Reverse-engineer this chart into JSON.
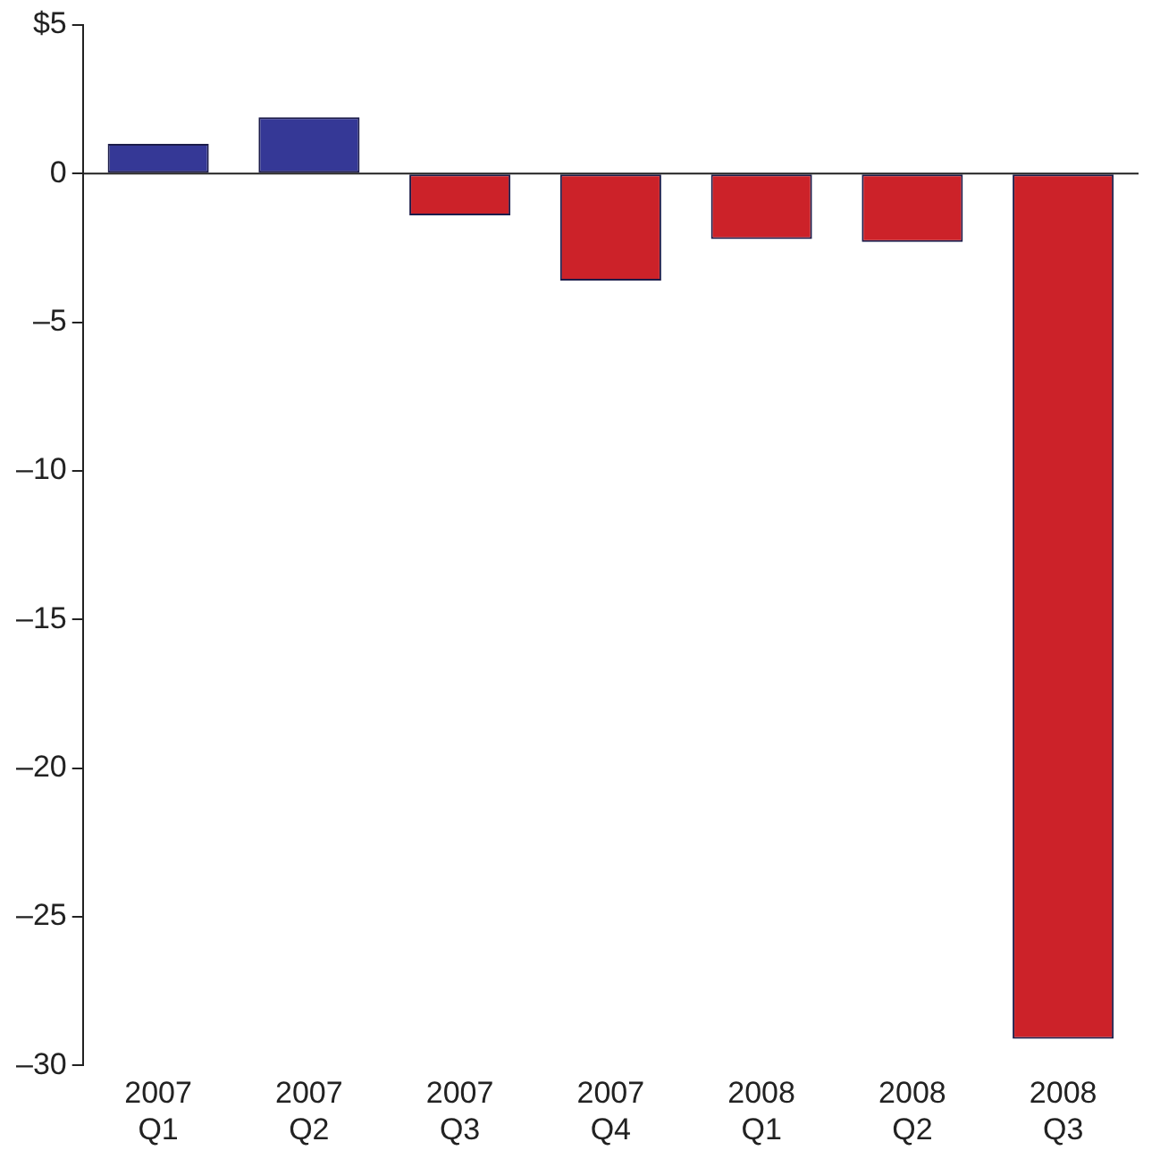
{
  "chart_data": {
    "type": "bar",
    "categories": [
      "2007\nQ1",
      "2007\nQ2",
      "2007\nQ3",
      "2007\nQ4",
      "2008\nQ1",
      "2008\nQ2",
      "2008\nQ3"
    ],
    "values": [
      1.0,
      1.9,
      -1.4,
      -3.6,
      -2.2,
      -2.3,
      -29.1
    ],
    "colors": [
      "#353896",
      "#353896",
      "#cc2229",
      "#cc2229",
      "#cc2229",
      "#cc2229",
      "#cc2229"
    ],
    "ylim": [
      -30,
      5
    ],
    "yticks": [
      {
        "value": 5,
        "label": "$5"
      },
      {
        "value": 0,
        "label": "0"
      },
      {
        "value": -5,
        "label": "–5"
      },
      {
        "value": -10,
        "label": "–10"
      },
      {
        "value": -15,
        "label": "–15"
      },
      {
        "value": -20,
        "label": "–20"
      },
      {
        "value": -25,
        "label": "–25"
      },
      {
        "value": -30,
        "label": "–30"
      }
    ],
    "legend": false
  }
}
